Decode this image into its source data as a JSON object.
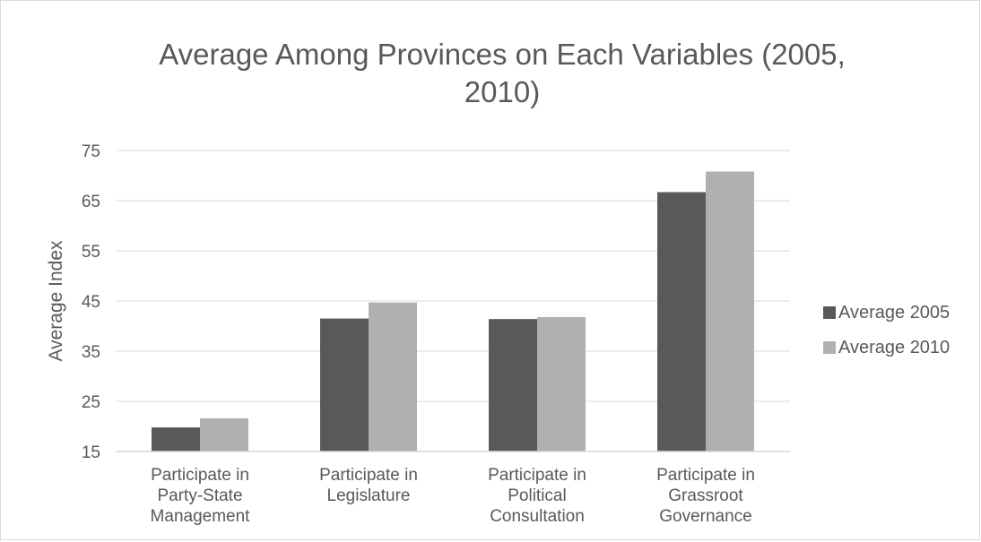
{
  "chart_data": {
    "type": "bar",
    "title": "Average Among Provinces on Each Variables (2005, 2010)",
    "title_lines": [
      "Average Among Provinces on Each Variables (2005,",
      "2010)"
    ],
    "xlabel": "",
    "ylabel": "Average Index",
    "ylim": [
      15,
      75
    ],
    "yticks": [
      15,
      25,
      35,
      45,
      55,
      65,
      75
    ],
    "grid": true,
    "legend_position": "right",
    "categories": [
      "Participate in Party-State Management",
      "Participate in Legislature",
      "Participate in Political Consultation",
      "Participate in Grassroot Governance"
    ],
    "category_lines": [
      [
        "Participate in",
        "Party-State",
        "Management"
      ],
      [
        "Participate in",
        "Legislature"
      ],
      [
        "Participate in",
        "Political",
        "Consultation"
      ],
      [
        "Participate in",
        "Grassroot",
        "Governance"
      ]
    ],
    "series": [
      {
        "name": "Average 2005",
        "color": "#595959",
        "values": [
          19.8,
          41.5,
          41.4,
          66.7
        ]
      },
      {
        "name": "Average 2010",
        "color": "#b0b0b0",
        "values": [
          21.6,
          44.7,
          41.8,
          70.8
        ]
      }
    ]
  }
}
